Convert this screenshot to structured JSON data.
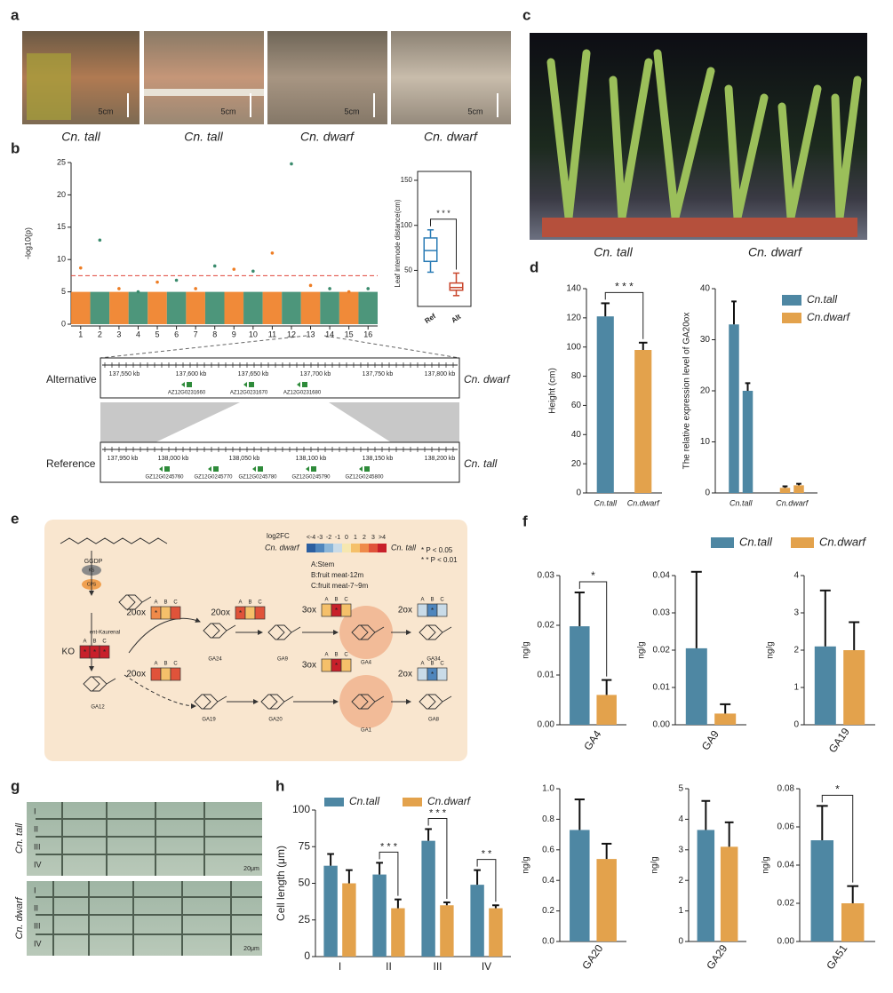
{
  "panel_labels": [
    "a",
    "b",
    "c",
    "d",
    "e",
    "f",
    "g",
    "h"
  ],
  "photos_a": {
    "captions": [
      "Cn. tall",
      "Cn. tall",
      "Cn. dwarf",
      "Cn. dwarf"
    ],
    "scale_labels": [
      "5cm",
      "5cm",
      "5cm",
      "5cm"
    ]
  },
  "photo_c": {
    "captions": [
      "Cn. tall",
      "Cn. dwarf"
    ]
  },
  "photos_g": {
    "row_labels": [
      "Cn. tall",
      "Cn. dwarf"
    ],
    "layer_labels": [
      "I",
      "II",
      "III",
      "IV"
    ],
    "scale_labels": [
      "20μm",
      "20μm"
    ]
  },
  "synteny": {
    "tracks": [
      {
        "name": "Alternative",
        "genome": "Cn. dwarf",
        "ticks": [
          "137,550 kb",
          "137,600 kb",
          "137,650 kb",
          "137,700 kb",
          "137,750 kb",
          "137,800 kb"
        ],
        "genes": [
          "AZ12G0231660",
          "AZ12G0231670",
          "AZ12G0231680"
        ]
      },
      {
        "name": "Reference",
        "genome": "Cn. tall",
        "ticks": [
          "137,950 kb",
          "138,000 kb",
          "138,050 kb",
          "138,100 kb",
          "138,150 kb",
          "138,200 kb"
        ],
        "genes": [
          "GZ12G0245760",
          "GZ12G0245770",
          "GZ12G0245780",
          "GZ12G0245790",
          "GZ12G0245800"
        ]
      }
    ]
  },
  "pathway": {
    "compounds": [
      "GGDP",
      "ent-Kaurenal",
      "GA12",
      "GA24",
      "GA9",
      "GA4",
      "GA34",
      "GA19",
      "GA20",
      "GA1",
      "GA8"
    ],
    "pre_enzymes": [
      "KS",
      "CPS"
    ],
    "box_columns": [
      "A",
      "B",
      "C"
    ],
    "enzymes": [
      {
        "label": "20ox",
        "values": [
          2,
          1,
          2.5
        ],
        "stars": [
          "*",
          null,
          null
        ]
      },
      {
        "label": "KO",
        "values": [
          4,
          4,
          4
        ],
        "stars": [
          "*",
          "*",
          "*"
        ]
      },
      {
        "label": "20ox",
        "values": [
          3,
          1,
          2.5
        ],
        "stars": [
          "*",
          null,
          null
        ]
      },
      {
        "label": "3ox",
        "values": [
          1,
          3.5,
          1
        ],
        "stars": [
          null,
          "*",
          null
        ]
      },
      {
        "label": "2ox",
        "values": [
          -1,
          -3,
          -1.5
        ],
        "stars": [
          null,
          "*",
          null
        ]
      },
      {
        "label": "20ox",
        "values": [
          3,
          1,
          2.5
        ],
        "stars": [
          null,
          null,
          null
        ]
      },
      {
        "label": "3ox",
        "values": [
          1,
          3.5,
          1
        ],
        "stars": [
          null,
          "*",
          null
        ]
      },
      {
        "label": "2ox",
        "values": [
          -1.5,
          -3.5,
          -1
        ],
        "stars": [
          null,
          "*",
          null
        ]
      }
    ],
    "legend": {
      "title": "log2FC",
      "low": "Cn. dwarf",
      "high": "Cn. tall",
      "scale_labels": [
        "<-4",
        "-3",
        "-2",
        "-1",
        "0",
        "1",
        "2",
        "3",
        ">4"
      ],
      "scale_colors": [
        "#2c5fa0",
        "#4f86bd",
        "#8bb6d9",
        "#c9dbe8",
        "#f6e7b0",
        "#f5c06a",
        "#ef8a4a",
        "#e0533a",
        "#c8202a"
      ],
      "tissues": [
        "A:Stem",
        "B:fruit meat-12m",
        "C:fruit meat-7~9m"
      ],
      "significance": [
        "* P < 0.05",
        "* * P < 0.01"
      ]
    }
  },
  "f_legend": [
    {
      "name": "Cn.tall",
      "color": "#4e87a3"
    },
    {
      "name": "Cn.dwarf",
      "color": "#e3a24c"
    }
  ],
  "chart_data": [
    {
      "type": "manhattan",
      "ylabel": "-log10(p)",
      "categories": [
        "1",
        "2",
        "3",
        "4",
        "5",
        "6",
        "7",
        "8",
        "9",
        "10",
        "11",
        "12",
        "13",
        "14",
        "15",
        "16"
      ],
      "values": [
        8.7,
        13,
        5.5,
        5,
        6.5,
        6.8,
        5.5,
        9,
        8.5,
        8.2,
        11,
        24.8,
        6,
        5.5,
        5,
        5.5
      ],
      "band": [
        5,
        5,
        5,
        5,
        5,
        5,
        5,
        5,
        5,
        5,
        5,
        5,
        5,
        5,
        5,
        5
      ],
      "threshold": 7.5,
      "colors": [
        "#ee7d24",
        "#3a8b6d"
      ],
      "ylim": [
        0,
        25
      ],
      "yticks": [
        0,
        5,
        10,
        15,
        20,
        25
      ]
    },
    {
      "type": "box",
      "ylabel": "Leaf internode distance(cm)",
      "categories": [
        "Ref",
        "Alt"
      ],
      "boxes": [
        {
          "low": 48,
          "q1": 60,
          "median": 72,
          "q3": 86,
          "high": 95
        },
        {
          "low": 22,
          "q1": 28,
          "median": 31,
          "q3": 36,
          "high": 47
        }
      ],
      "colors": [
        "#2a7bb5",
        "#c9462c"
      ],
      "ylim": [
        10,
        150
      ],
      "yticks": [
        50,
        100,
        150
      ],
      "significance": "* * *"
    },
    {
      "type": "bar",
      "ylabel": "Height (cm)",
      "categories": [
        "Cn.tall",
        "Cn.dwarf"
      ],
      "values": [
        121,
        98
      ],
      "errors": [
        9,
        5
      ],
      "colors": [
        "#4e87a3",
        "#e3a24c"
      ],
      "ylim": [
        0,
        140
      ],
      "yticks": [
        0,
        20,
        40,
        60,
        80,
        100,
        120,
        140
      ],
      "significance": "* * *"
    },
    {
      "type": "bar",
      "ylabel": "The relative expression level of GA20ox",
      "categories": [
        "Cn.tall",
        "Cn.dwarf"
      ],
      "values": [
        [
          33,
          20
        ],
        [
          1,
          1.5
        ]
      ],
      "errors": [
        [
          4.5,
          1.5
        ],
        [
          0.3,
          0.3
        ]
      ],
      "colors": [
        "#4e87a3",
        "#e3a24c"
      ],
      "legend": [
        "Cn.tall",
        "Cn.dwarf"
      ],
      "ylim": [
        0,
        40
      ],
      "yticks": [
        0,
        10,
        20,
        30,
        40
      ]
    },
    {
      "type": "bar",
      "ylabel": "ng/g",
      "xlabel": "GA4",
      "series": [
        {
          "color": "#4e87a3",
          "values": [
            0.0198
          ],
          "errors": [
            0.0068
          ]
        },
        {
          "color": "#e3a24c",
          "values": [
            0.006
          ],
          "errors": [
            0.003
          ]
        }
      ],
      "ylim": [
        0,
        0.03
      ],
      "yticks": [
        {
          "value": 0,
          "label": "0.00"
        },
        0.01,
        0.02,
        0.03
      ],
      "significance": "*"
    },
    {
      "type": "bar",
      "ylabel": "ng/g",
      "xlabel": "GA9",
      "series": [
        {
          "color": "#4e87a3",
          "values": [
            0.0205
          ],
          "errors": [
            0.0205
          ]
        },
        {
          "color": "#e3a24c",
          "values": [
            0.003
          ],
          "errors": [
            0.0025
          ]
        }
      ],
      "ylim": [
        0,
        0.04
      ],
      "yticks": [
        {
          "value": 0,
          "label": "0.00"
        },
        0.01,
        0.02,
        0.03,
        0.04
      ]
    },
    {
      "type": "bar",
      "ylabel": "ng/g",
      "xlabel": "GA19",
      "series": [
        {
          "color": "#4e87a3",
          "values": [
            2.1
          ],
          "errors": [
            1.5
          ]
        },
        {
          "color": "#e3a24c",
          "values": [
            2.0
          ],
          "errors": [
            0.75
          ]
        }
      ],
      "ylim": [
        0,
        4
      ],
      "yticks": [
        0,
        1,
        2,
        3,
        4
      ]
    },
    {
      "type": "bar",
      "ylabel": "ng/g",
      "xlabel": "GA20",
      "series": [
        {
          "color": "#4e87a3",
          "values": [
            0.73
          ],
          "errors": [
            0.2
          ]
        },
        {
          "color": "#e3a24c",
          "values": [
            0.54
          ],
          "errors": [
            0.1
          ]
        }
      ],
      "ylim": [
        0,
        1
      ],
      "yticks": [
        {
          "value": 0,
          "label": "0.0"
        },
        0.2,
        0.4,
        0.6,
        0.8,
        {
          "value": 1,
          "label": "1.0"
        }
      ]
    },
    {
      "type": "bar",
      "ylabel": "ng/g",
      "xlabel": "GA29",
      "series": [
        {
          "color": "#4e87a3",
          "values": [
            3.65
          ],
          "errors": [
            0.95
          ]
        },
        {
          "color": "#e3a24c",
          "values": [
            3.1
          ],
          "errors": [
            0.8
          ]
        }
      ],
      "ylim": [
        0,
        5
      ],
      "yticks": [
        0,
        1,
        2,
        3,
        4,
        5
      ]
    },
    {
      "type": "bar",
      "ylabel": "ng/g",
      "xlabel": "GA51",
      "series": [
        {
          "color": "#4e87a3",
          "values": [
            0.053
          ],
          "errors": [
            0.018
          ]
        },
        {
          "color": "#e3a24c",
          "values": [
            0.02
          ],
          "errors": [
            0.009
          ]
        }
      ],
      "ylim": [
        0,
        0.08
      ],
      "yticks": [
        {
          "value": 0,
          "label": "0.00"
        },
        0.02,
        0.04,
        0.06,
        0.08
      ],
      "significance": "*"
    },
    {
      "type": "bar",
      "ylabel": "Cell length (μm)",
      "categories": [
        "I",
        "II",
        "III",
        "IV"
      ],
      "series": [
        {
          "name": "Cn.tall",
          "color": "#4e87a3",
          "values": [
            62,
            56,
            79,
            49
          ],
          "errors": [
            8,
            8,
            8,
            10
          ]
        },
        {
          "name": "Cn.dwarf",
          "color": "#e3a24c",
          "values": [
            50,
            33,
            35,
            33
          ],
          "errors": [
            9,
            6,
            2,
            2
          ]
        }
      ],
      "ylim": [
        0,
        100
      ],
      "yticks": [
        0,
        25,
        50,
        75,
        100
      ],
      "significance": [
        null,
        "* * *",
        "* * *",
        "* *"
      ]
    }
  ]
}
